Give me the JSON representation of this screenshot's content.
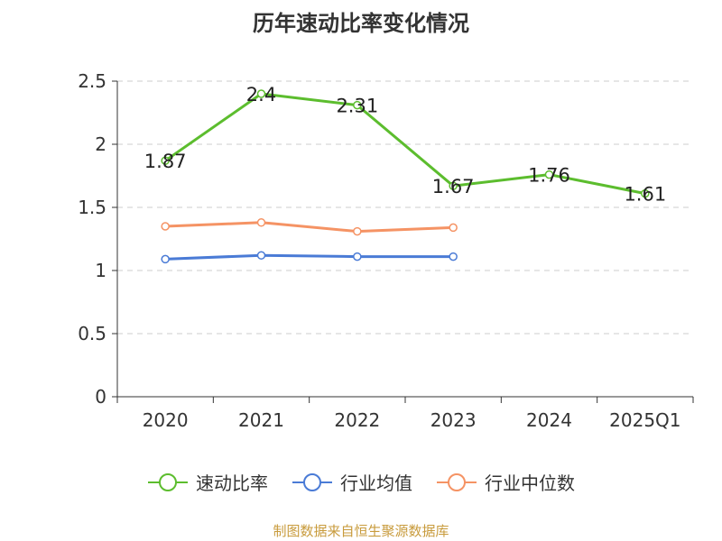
{
  "chart_data": {
    "type": "line",
    "title": "历年速动比率变化情况",
    "categories": [
      "2020",
      "2021",
      "2022",
      "2023",
      "2024",
      "2025Q1"
    ],
    "ylim": [
      0,
      2.5
    ],
    "yticks": [
      "0",
      "0.5",
      "1",
      "1.5",
      "2",
      "2.5"
    ],
    "grid": true,
    "legend_position": "bottom",
    "series": [
      {
        "name": "速动比率",
        "color": "#5cbd2e",
        "values": [
          1.87,
          2.4,
          2.31,
          1.67,
          1.76,
          1.61
        ],
        "labels": [
          "1.87",
          "2.4",
          "2.31",
          "1.67",
          "1.76",
          "1.61"
        ]
      },
      {
        "name": "行业均值",
        "color": "#4a7bd6",
        "values": [
          1.09,
          1.12,
          1.11,
          1.11,
          null,
          null
        ]
      },
      {
        "name": "行业中位数",
        "color": "#f59364",
        "values": [
          1.35,
          1.38,
          1.31,
          1.34,
          null,
          null
        ]
      }
    ]
  },
  "source": "制图数据来自恒生聚源数据库"
}
